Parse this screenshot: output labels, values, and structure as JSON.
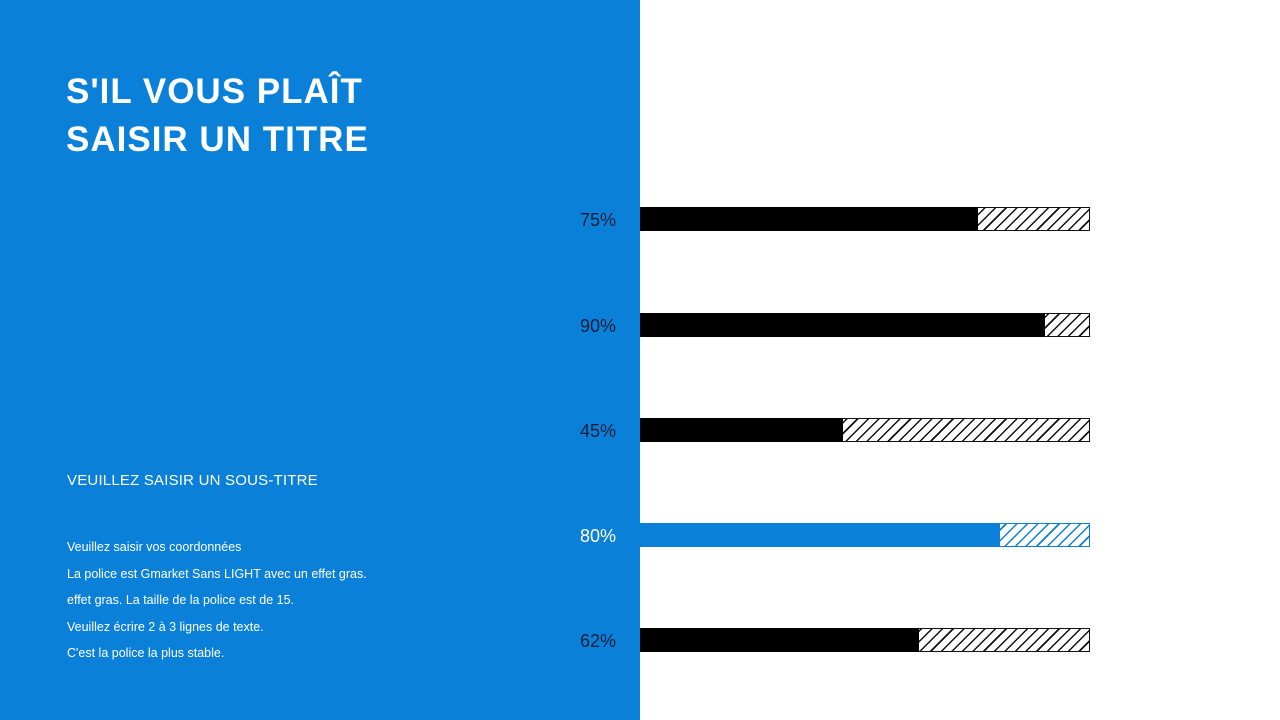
{
  "slide": {
    "title_lines": [
      "S'IL VOUS PLAÎT",
      "SAISIR UN TITRE"
    ],
    "subtitle": "VEUILLEZ SAISIR UN SOUS-TITRE",
    "body_lines": [
      "Veuillez saisir vos coordonnées",
      "La police est Gmarket Sans LIGHT avec un effet gras.",
      "effet gras. La taille de la police est de 15.",
      "Veuillez écrire 2 à 3 lignes de texte.",
      "C'est la police la plus stable."
    ]
  },
  "colors": {
    "accent_blue": "#0A80D8",
    "bar_dark": "#000000",
    "label_dark": "#0B1E3A",
    "background": "#FFFFFF"
  },
  "chart_data": {
    "type": "bar",
    "orientation": "horizontal",
    "title": "",
    "xlabel": "",
    "ylabel": "",
    "xlim": [
      0,
      100
    ],
    "grid": false,
    "legend": null,
    "categories": [
      "75%",
      "90%",
      "45%",
      "80%",
      "62%"
    ],
    "values": [
      75,
      90,
      45,
      80,
      62
    ],
    "highlighted_index": 3,
    "remainder_style": "hatched",
    "labels": [
      "75%",
      "90%",
      "45%",
      "80%",
      "62%"
    ]
  }
}
